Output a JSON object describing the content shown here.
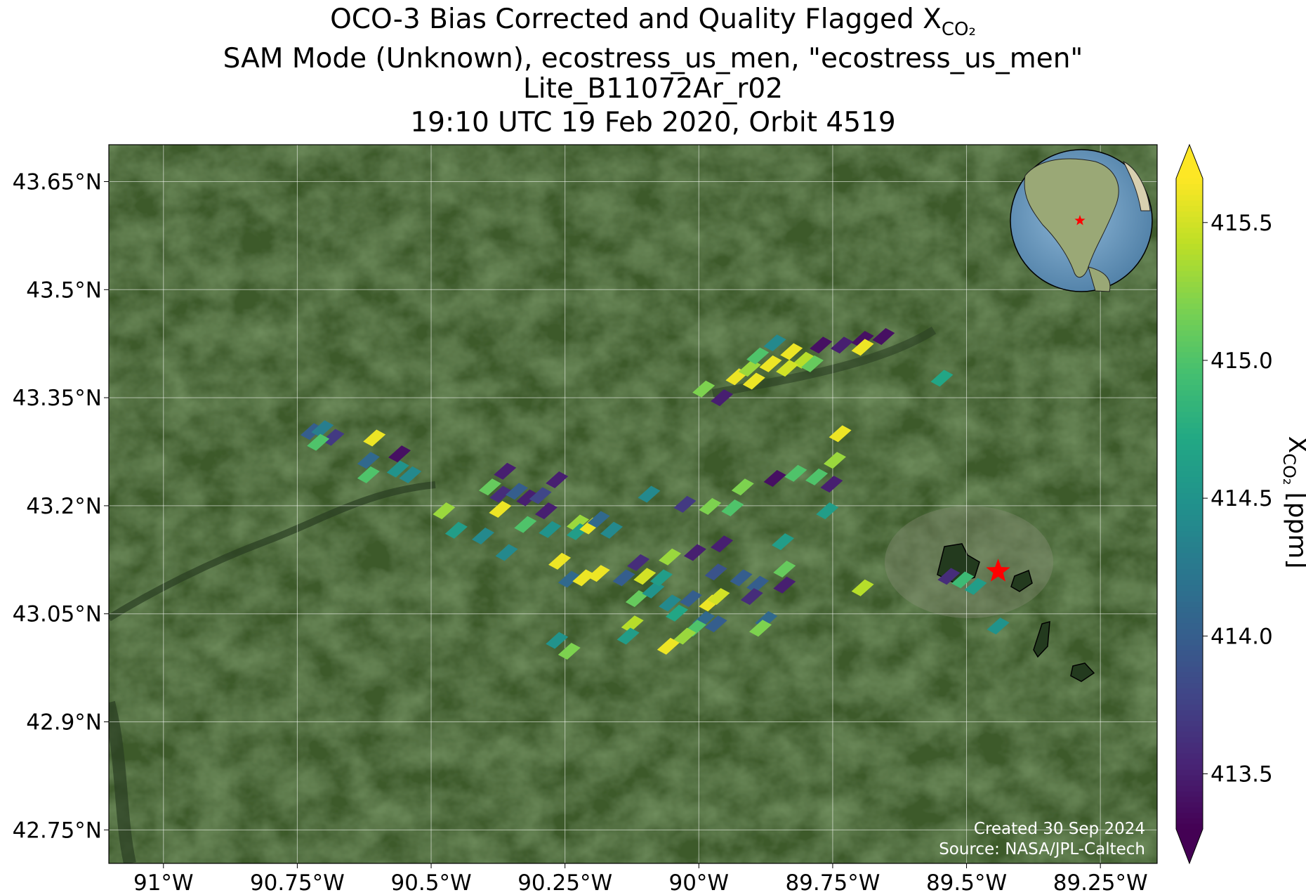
{
  "chart_data": {
    "type": "map",
    "title": "OCO-3 Bias Corrected and Quality Flagged X",
    "title_subscript": "CO₂",
    "subtitle": [
      "SAM Mode (Unknown), ecostress_us_men, \"ecostress_us_men\"",
      "Lite_B11072Ar_r02",
      "19:10 UTC 19 Feb 2020, Orbit 4519"
    ],
    "annotations": [
      "Created 30 Sep 2024",
      "Source: NASA/JPL-Caltech"
    ],
    "xlim": [
      -91.102,
      -89.144
    ],
    "ylim": [
      42.7035,
      43.7012
    ],
    "xticks": [
      {
        "value": -91,
        "label": "91°W"
      },
      {
        "value": -90.75,
        "label": "90.75°W"
      },
      {
        "value": -90.5,
        "label": "90.5°W"
      },
      {
        "value": -90.25,
        "label": "90.25°W"
      },
      {
        "value": -90,
        "label": "90°W"
      },
      {
        "value": -89.75,
        "label": "89.75°W"
      },
      {
        "value": -89.5,
        "label": "89.5°W"
      },
      {
        "value": -89.25,
        "label": "89.25°W"
      }
    ],
    "yticks": [
      {
        "value": 42.75,
        "label": "42.75°N"
      },
      {
        "value": 42.9,
        "label": "42.9°N"
      },
      {
        "value": 43.05,
        "label": "43.05°N"
      },
      {
        "value": 43.2,
        "label": "43.2°N"
      },
      {
        "value": 43.35,
        "label": "43.35°N"
      },
      {
        "value": 43.5,
        "label": "43.5°N"
      },
      {
        "value": 43.65,
        "label": "43.65°N"
      }
    ],
    "grid": true,
    "x": [
      -89.991,
      -89.957,
      -89.929,
      -89.905,
      -89.89,
      -89.858,
      -89.866,
      -89.827,
      -89.804,
      -89.835,
      -89.897,
      -89.788,
      -89.772,
      -89.733,
      -89.694,
      -89.694,
      -89.655,
      -89.546,
      -90.723,
      -90.703,
      -90.683,
      -90.711,
      -90.606,
      -90.559,
      -90.617,
      -90.617,
      -90.562,
      -90.539,
      -90.476,
      -90.453,
      -90.403,
      -90.359,
      -90.362,
      -90.39,
      -90.37,
      -90.371,
      -90.34,
      -90.32,
      -90.296,
      -90.285,
      -90.324,
      -90.278,
      -90.265,
      -90.226,
      -90.226,
      -90.202,
      -90.187,
      -90.163,
      -90.26,
      -90.242,
      -90.215,
      -90.187,
      -90.14,
      -90.113,
      -90.101,
      -90.116,
      -90.085,
      -90.054,
      -90.07,
      -90.054,
      -90.041,
      -90.015,
      -89.979,
      -89.963,
      -89.991,
      -89.968,
      -90.007,
      -90.026,
      -90.057,
      -90.124,
      -90.132,
      -90.265,
      -90.242,
      -90.007,
      -89.957,
      -89.968,
      -89.921,
      -89.89,
      -89.901,
      -89.874,
      -89.885,
      -89.843,
      -89.84,
      -89.84,
      -90.093,
      -90.026,
      -89.979,
      -89.937,
      -89.918,
      -89.858,
      -89.819,
      -89.78,
      -89.752,
      -89.76,
      -89.746,
      -89.736,
      -89.694,
      -89.533,
      -89.507,
      -89.483,
      -89.441
    ],
    "y": [
      43.362,
      43.35,
      43.379,
      43.391,
      43.408,
      43.426,
      43.397,
      43.414,
      43.402,
      43.391,
      43.373,
      43.397,
      43.423,
      43.423,
      43.431,
      43.42,
      43.435,
      43.377,
      43.303,
      43.307,
      43.295,
      43.288,
      43.294,
      43.272,
      43.263,
      43.243,
      43.251,
      43.243,
      43.193,
      43.166,
      43.158,
      43.135,
      43.248,
      43.226,
      43.216,
      43.195,
      43.22,
      43.211,
      43.214,
      43.193,
      43.174,
      43.167,
      43.236,
      43.176,
      43.164,
      43.172,
      43.181,
      43.166,
      43.123,
      43.098,
      43.1,
      43.106,
      43.1,
      43.121,
      43.102,
      43.071,
      43.083,
      43.129,
      43.1,
      43.065,
      43.051,
      43.071,
      43.065,
      43.074,
      43.042,
      43.036,
      43.03,
      43.019,
      43.005,
      43.036,
      43.019,
      43.013,
      42.998,
      43.135,
      43.147,
      43.108,
      43.1,
      43.091,
      43.074,
      43.042,
      43.03,
      43.15,
      43.112,
      43.09,
      43.216,
      43.202,
      43.199,
      43.197,
      43.226,
      43.238,
      43.245,
      43.24,
      43.23,
      43.193,
      43.263,
      43.3,
      43.086,
      43.102,
      43.097,
      43.088,
      43.033
    ],
    "values": [
      415.2,
      413.5,
      415.6,
      415.3,
      415.0,
      414.4,
      415.6,
      415.6,
      415.4,
      415.5,
      415.6,
      415.1,
      413.4,
      413.5,
      413.4,
      415.6,
      413.4,
      414.7,
      414.0,
      414.3,
      413.7,
      415.0,
      415.6,
      413.4,
      414.1,
      415.0,
      414.5,
      414.4,
      415.3,
      414.6,
      414.4,
      414.4,
      413.5,
      415.1,
      413.6,
      415.6,
      414.0,
      413.5,
      413.8,
      413.5,
      415.0,
      414.5,
      413.5,
      415.3,
      414.6,
      415.6,
      414.1,
      414.4,
      415.6,
      414.1,
      415.6,
      415.6,
      414.0,
      413.6,
      415.5,
      415.1,
      414.5,
      415.3,
      414.6,
      414.4,
      414.7,
      414.0,
      415.6,
      415.5,
      414.1,
      414.0,
      415.0,
      415.3,
      415.6,
      415.4,
      414.6,
      414.5,
      415.2,
      413.5,
      413.5,
      413.9,
      414.0,
      414.0,
      413.6,
      414.1,
      415.2,
      414.6,
      415.1,
      413.5,
      414.4,
      413.7,
      415.2,
      415.0,
      415.2,
      413.4,
      415.0,
      415.0,
      413.5,
      414.6,
      415.3,
      415.6,
      415.4,
      413.6,
      414.9,
      414.6,
      414.5
    ],
    "target": {
      "x": -89.441,
      "y": 43.109,
      "color": "#ff0000"
    },
    "colorbar": {
      "label": "X",
      "label_subscript": "CO₂",
      "label_unit": "[ppm]",
      "colormap": "viridis",
      "extend": "both",
      "lim": [
        413.3,
        415.66
      ],
      "ticks": [
        413.5,
        {
          "value": 414.0,
          "label": "414.0"
        },
        414.5,
        {
          "value": 415.0,
          "label": "415.0"
        },
        415.5
      ]
    }
  }
}
